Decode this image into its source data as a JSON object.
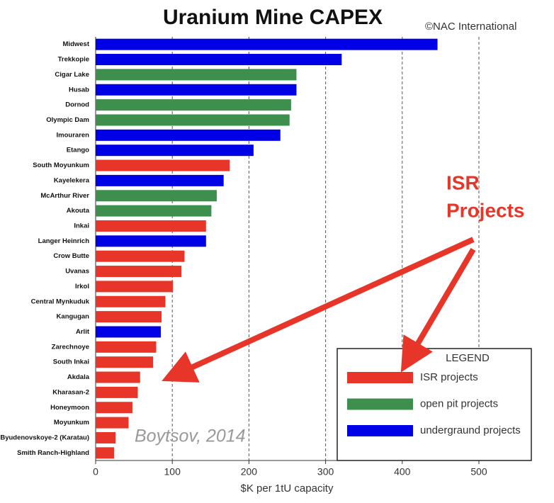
{
  "chart_data": {
    "type": "barh",
    "title": "Uranium Mine CAPEX",
    "credit": "©NAC International",
    "x_label": "$K per 1tU capacity",
    "categories": [
      "Midwest",
      "Trekkopie",
      "Cigar Lake",
      "Husab",
      "Dornod",
      "Olympic Dam",
      "Imouraren",
      "Etango",
      "South Moyunkum",
      "Kayelekera",
      "McArthur River",
      "Akouta",
      "Inkai",
      "Langer Heinrich",
      "Crow Butte",
      "Uvanas",
      "Irkol",
      "Central Mynkuduk",
      "Kangugan",
      "Arlit",
      "Zarechnoye",
      "South Inkai",
      "Akdala",
      "Kharasan-2",
      "Honeymoon",
      "Moyunkum",
      "Byudenovskoye-2 (Karatau)",
      "Smith Ranch-Highland"
    ],
    "values": [
      446,
      321,
      262,
      262,
      255,
      253,
      241,
      206,
      175,
      167,
      158,
      151,
      144,
      144,
      116,
      112,
      101,
      91,
      86,
      85,
      79,
      75,
      58,
      55,
      48,
      43,
      26,
      24
    ],
    "bar_colors": [
      "#0000e6",
      "#0000e6",
      "#3e8e4e",
      "#0000e6",
      "#3e8e4e",
      "#3e8e4e",
      "#0000e6",
      "#0000e6",
      "#e8352a",
      "#0000e6",
      "#3e8e4e",
      "#3e8e4e",
      "#e8352a",
      "#0000e6",
      "#e8352a",
      "#e8352a",
      "#e8352a",
      "#e8352a",
      "#e8352a",
      "#0000e6",
      "#e8352a",
      "#e8352a",
      "#e8352a",
      "#e8352a",
      "#e8352a",
      "#e8352a",
      "#e8352a",
      "#e8352a"
    ],
    "xlim": [
      0,
      500
    ],
    "xticks": [
      0,
      100,
      200,
      300,
      400,
      500
    ],
    "grid": true,
    "legend": {
      "title": "LEGEND",
      "entries": [
        {
          "label": "ISR projects",
          "color": "#e8352a"
        },
        {
          "label": "open pit projects",
          "color": "#3e8e4e"
        },
        {
          "label": "undergraund projects",
          "color": "#0000e6"
        }
      ]
    },
    "annotations": {
      "isr_line1": "ISR",
      "isr_line2": "Projects",
      "source": "Boytsov, 2014"
    }
  }
}
